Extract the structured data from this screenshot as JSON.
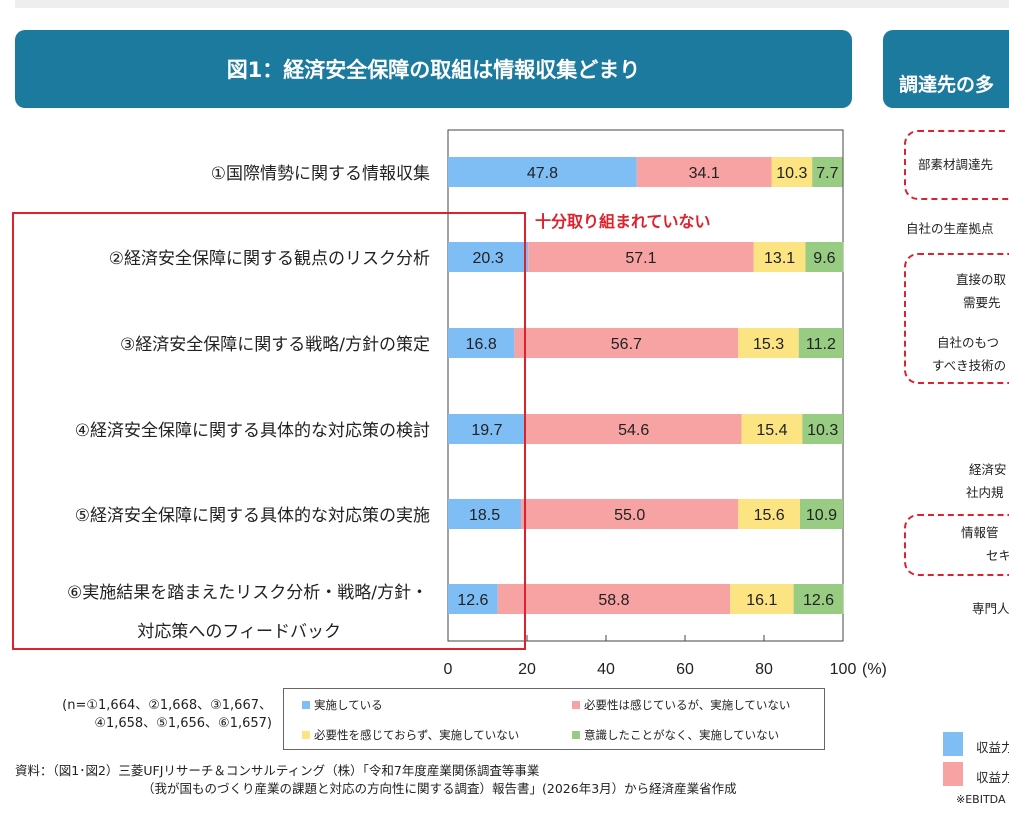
{
  "header": {
    "title": "図1：経済安全保障の取組は情報収集どまり"
  },
  "right_panel": {
    "title": "調達先の多",
    "texts": [
      "部素材調達先",
      "自社の生産拠点",
      "直接の取",
      "需要先",
      "自社のもつ",
      "すべき技術の",
      "経済安",
      "社内規",
      "情報管",
      "セキ",
      "専門人"
    ],
    "legend": [
      "収益力",
      "収益力"
    ],
    "footnote": "※EBITDA"
  },
  "chart_data": {
    "type": "bar",
    "stacked": true,
    "orientation": "horizontal",
    "categories": [
      "①国際情勢に関する情報収集",
      "②経済安全保障に関する観点のリスク分析",
      "③経済安全保障に関する戦略/方針の策定",
      "④経済安全保障に関する具体的な対応策の検討",
      "⑤経済安全保障に関する具体的な対応策の実施",
      "⑥実施結果を踏まえたリスク分析・戦略/方針・対応策へのフィードバック"
    ],
    "series": [
      {
        "name": "実施している",
        "color": "#7fbdf5",
        "values": [
          47.8,
          20.3,
          16.8,
          19.7,
          18.5,
          12.6
        ]
      },
      {
        "name": "必要性は感じているが、実施していない",
        "color": "#f8a3a3",
        "values": [
          34.1,
          57.1,
          56.7,
          54.6,
          55.0,
          58.8
        ]
      },
      {
        "name": "必要性を感じておらず、実施していない",
        "color": "#fce482",
        "values": [
          10.3,
          13.1,
          15.3,
          15.4,
          15.6,
          16.1
        ]
      },
      {
        "name": "意識したことがなく、実施していない",
        "color": "#98cc82",
        "values": [
          7.7,
          9.6,
          11.2,
          10.3,
          10.9,
          12.6
        ]
      }
    ],
    "xlim": [
      0,
      100
    ],
    "xticks": [
      "0",
      "20",
      "40",
      "60",
      "80",
      "100"
    ],
    "xunit": "(%)",
    "annotation": "十分取り組まれていない",
    "legend_position": "bottom"
  },
  "notes": {
    "n_line1": "(n=①1,664、②1,668、③1,667、",
    "n_line2": "④1,658、⑤1,656、⑥1,657)"
  },
  "source": {
    "line1": "資料：（図1･図2）三菱UFJリサーチ＆コンサルティング（株）「令和7年度産業関係調査等事業",
    "line2": "（我が国ものづくり産業の課題と対応の方向性に関する調査）報告書」(2026年3月）から経済産業省作成"
  }
}
